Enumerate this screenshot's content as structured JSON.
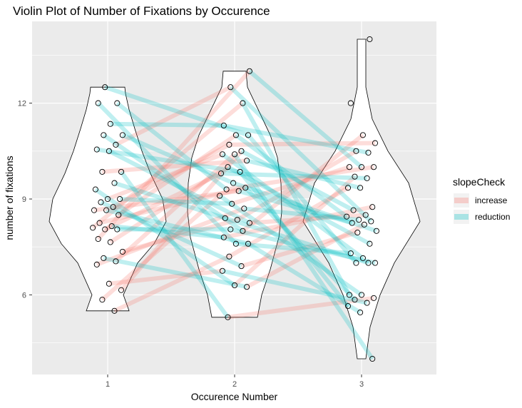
{
  "chart_data": {
    "type": "violin",
    "title": "Violin Plot of Number of Fixations by Occurence",
    "xlabel": "Occurence Number",
    "ylabel": "number of fixations",
    "categories": [
      "1",
      "2",
      "3"
    ],
    "y_ticks": [
      6,
      9,
      12
    ],
    "ylim": [
      3.7,
      14.3
    ],
    "grid": true,
    "legend": {
      "title": "slopeCheck",
      "position": "right",
      "entries": [
        {
          "label": "increase",
          "color": "#F8766D"
        },
        {
          "label": "reduction",
          "color": "#00BFC4"
        }
      ]
    },
    "points": {
      "1": [
        5.5,
        5.85,
        6.15,
        6.35,
        6.95,
        7.05,
        7.15,
        7.35,
        7.65,
        7.75,
        8.05,
        8.05,
        8.1,
        8.15,
        8.25,
        8.5,
        8.65,
        8.65,
        8.75,
        8.9,
        9.0,
        9.0,
        9.3,
        9.5,
        9.85,
        9.85,
        10.5,
        10.55,
        10.7,
        11.0,
        11.0,
        11.35,
        12.0,
        12.0,
        12.5
      ],
      "2": [
        5.3,
        6.25,
        6.3,
        6.75,
        6.9,
        7.2,
        7.6,
        7.6,
        7.8,
        8.0,
        8.05,
        8.25,
        8.35,
        8.4,
        8.7,
        8.85,
        9.1,
        9.25,
        9.3,
        9.35,
        9.5,
        9.8,
        9.85,
        10.0,
        10.2,
        10.4,
        10.4,
        10.5,
        10.7,
        11.0,
        11.0,
        11.3,
        12.0,
        12.5,
        13.0
      ],
      "3": [
        4.0,
        5.45,
        5.65,
        5.75,
        5.85,
        5.9,
        6.0,
        6.0,
        7.0,
        7.0,
        7.0,
        7.15,
        7.3,
        7.6,
        7.95,
        8.0,
        8.2,
        8.25,
        8.3,
        8.35,
        8.45,
        8.5,
        8.65,
        8.75,
        9.35,
        9.35,
        9.65,
        9.7,
        10.0,
        10.0,
        10.0,
        10.45,
        10.5,
        10.75,
        11.0,
        12.0,
        14.0
      ]
    },
    "violins": {
      "1": {
        "min": 5.5,
        "max": 12.5
      },
      "2": {
        "min": 5.3,
        "max": 13.0
      },
      "3": {
        "min": 4.0,
        "max": 14.0
      }
    }
  }
}
